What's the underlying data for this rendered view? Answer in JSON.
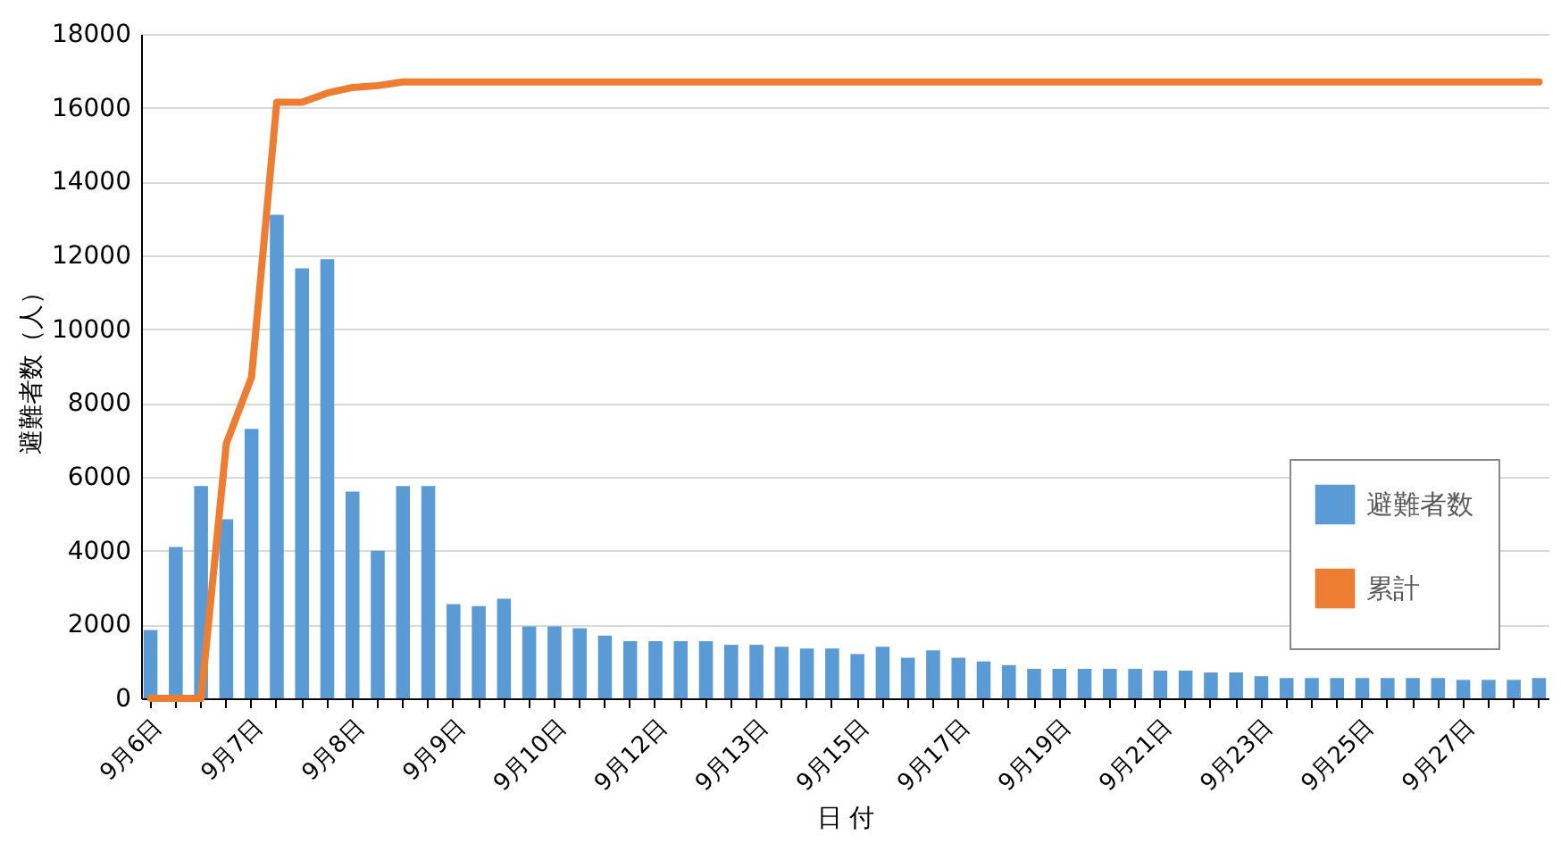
{
  "chart_data": {
    "type": "bar",
    "xlabel": "日 付",
    "ylabel": "避難者数（人）",
    "categories": [
      "9月6日",
      null,
      null,
      null,
      "9月7日",
      null,
      null,
      null,
      "9月8日",
      null,
      null,
      null,
      "9月9日",
      null,
      null,
      null,
      "9月10日",
      null,
      null,
      null,
      "9月12日",
      null,
      null,
      null,
      "9月13日",
      null,
      null,
      null,
      "9月15日",
      null,
      null,
      null,
      "9月17日",
      null,
      null,
      null,
      "9月19日",
      null,
      null,
      null,
      "9月21日",
      null,
      null,
      null,
      "9月23日",
      null,
      null,
      null,
      "9月25日",
      null,
      null,
      null,
      "9月27日",
      null,
      null,
      null
    ],
    "series": [
      {
        "name": "避難者数",
        "color": "#5b9bd5",
        "values": [
          1850,
          4100,
          5750,
          4850,
          7300,
          13100,
          11650,
          11900,
          5600,
          4000,
          5750,
          5750,
          2550,
          2500,
          2700,
          1950,
          1950,
          1900,
          1700,
          1550,
          1550,
          1550,
          1550,
          1450,
          1450,
          1400,
          1350,
          1350,
          1200,
          1400,
          1100,
          1300,
          1100,
          1000,
          900,
          800,
          800,
          800,
          800,
          800,
          750,
          750,
          700,
          700,
          600,
          550,
          550,
          550,
          550,
          550,
          550,
          550,
          500,
          500,
          500,
          550
        ]
      },
      {
        "name": "累計",
        "type": "line",
        "color": "#ed7d31",
        "values": [
          0,
          0,
          0,
          6900,
          8700,
          16150,
          16150,
          16400,
          16550,
          16600,
          16700,
          16700,
          16700,
          16700,
          16700,
          16700,
          16700,
          16700,
          16700,
          16700,
          16700,
          16700,
          16700,
          16700,
          16700,
          16700,
          16700,
          16700,
          16700,
          16700,
          16700,
          16700,
          16700,
          16700,
          16700,
          16700,
          16700,
          16700,
          16700,
          16700,
          16700,
          16700,
          16700,
          16700,
          16700,
          16700,
          16700,
          16700,
          16700,
          16700,
          16700,
          16700,
          16700,
          16700,
          16700,
          16700
        ]
      }
    ],
    "ylim": [
      0,
      18000
    ],
    "yticks": [
      0,
      2000,
      4000,
      6000,
      8000,
      10000,
      12000,
      14000,
      16000,
      18000
    ],
    "grid": "y",
    "legend": "bottom right"
  }
}
